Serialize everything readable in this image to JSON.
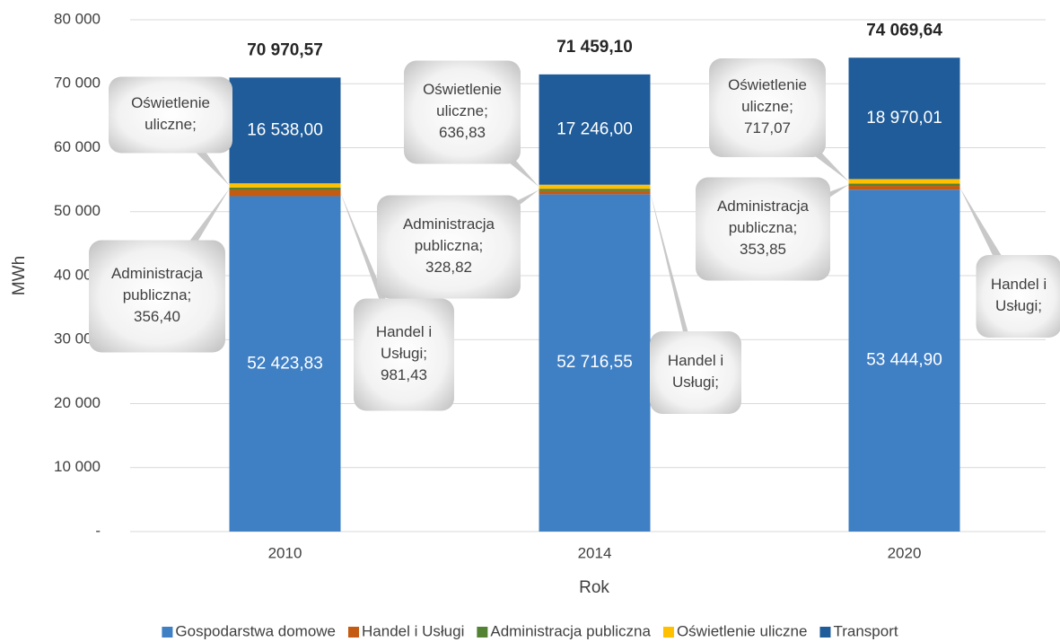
{
  "chart_data": {
    "type": "bar",
    "stacked": true,
    "categories": [
      "2010",
      "2014",
      "2020"
    ],
    "series": [
      {
        "name": "Gospodarstwa domowe",
        "color": "#3f7fc4",
        "values": [
          52423.83,
          52716.55,
          53444.9
        ],
        "value_labels": [
          "52 423,83",
          "52 716,55",
          "53 444,90"
        ]
      },
      {
        "name": "Handel i Usługi",
        "color": "#c55a11",
        "values": [
          981.43,
          530.9,
          583.81
        ],
        "value_labels": [
          "Handel i Usługi; 981,43",
          "Handel i Usługi;",
          "Handel i Usługi;"
        ]
      },
      {
        "name": "Administracja publiczna",
        "color": "#548235",
        "values": [
          356.4,
          328.82,
          353.85
        ],
        "value_labels": [
          "Administracja publiczna; 356,40",
          "Administracja publiczna; 328,82",
          "Administracja publiczna; 353,85"
        ]
      },
      {
        "name": "Oświetlenie uliczne",
        "color": "#ffc000",
        "values": [
          670.91,
          636.83,
          717.07
        ],
        "value_labels": [
          "Oświetlenie uliczne;",
          "Oświetlenie uliczne; 636,83",
          "Oświetlenie uliczne; 717,07"
        ]
      },
      {
        "name": "Transport",
        "color": "#1f5c99",
        "values": [
          16538,
          17246,
          18970.01
        ],
        "value_labels": [
          "16 538,00",
          "17 246,00",
          "18 970,01"
        ]
      }
    ],
    "totals": [
      70970.57,
      71459.1,
      74069.64
    ],
    "total_labels": [
      "70 970,57",
      "71 459,10",
      "74 069,64"
    ],
    "ylabel": "MWh",
    "xlabel": "Rok",
    "ylim": [
      0,
      80000
    ],
    "yticks": [
      {
        "value": 0,
        "label": "-"
      },
      {
        "value": 10000,
        "label": "10 000"
      },
      {
        "value": 20000,
        "label": "20 000"
      },
      {
        "value": 30000,
        "label": "30 000"
      },
      {
        "value": 40000,
        "label": "40 000"
      },
      {
        "value": 50000,
        "label": "50 000"
      },
      {
        "value": 60000,
        "label": "60 000"
      },
      {
        "value": 70000,
        "label": "70 000"
      },
      {
        "value": 80000,
        "label": "80 000"
      }
    ],
    "grid": true,
    "legend": "bottom"
  }
}
